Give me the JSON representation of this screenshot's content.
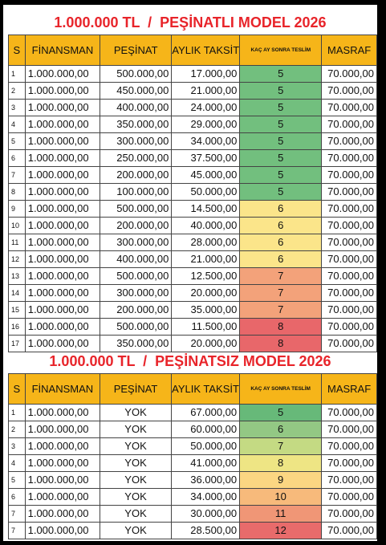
{
  "section1": {
    "title": "1.000.000 TL  /  PEŞİNATLI MODEL 2026",
    "headers": {
      "s": "S",
      "finansman": "FİNANSMAN",
      "pesinat": "PEŞİNAT",
      "aylik": "AYLIK TAKSİT",
      "kac": "KAÇ AY  SONRA TESLİM",
      "masraf": "MASRAF"
    },
    "rows": [
      {
        "s": "1",
        "fin": "1.000.000,00",
        "pes": "500.000,00",
        "tak": "17.000,00",
        "kac": "5",
        "mas": "70.000,00",
        "color": "#72bf7e"
      },
      {
        "s": "2",
        "fin": "1.000.000,00",
        "pes": "450.000,00",
        "tak": "21.000,00",
        "kac": "5",
        "mas": "70.000,00",
        "color": "#72bf7e"
      },
      {
        "s": "3",
        "fin": "1.000.000,00",
        "pes": "400.000,00",
        "tak": "24.000,00",
        "kac": "5",
        "mas": "70.000,00",
        "color": "#72bf7e"
      },
      {
        "s": "4",
        "fin": "1.000.000,00",
        "pes": "350.000,00",
        "tak": "29.000,00",
        "kac": "5",
        "mas": "70.000,00",
        "color": "#72bf7e"
      },
      {
        "s": "5",
        "fin": "1.000.000,00",
        "pes": "300.000,00",
        "tak": "34.000,00",
        "kac": "5",
        "mas": "70.000,00",
        "color": "#72bf7e"
      },
      {
        "s": "6",
        "fin": "1.000.000,00",
        "pes": "250.000,00",
        "tak": "37.500,00",
        "kac": "5",
        "mas": "70.000,00",
        "color": "#72bf7e"
      },
      {
        "s": "7",
        "fin": "1.000.000,00",
        "pes": "200.000,00",
        "tak": "45.000,00",
        "kac": "5",
        "mas": "70.000,00",
        "color": "#72bf7e"
      },
      {
        "s": "8",
        "fin": "1.000.000,00",
        "pes": "100.000,00",
        "tak": "50.000,00",
        "kac": "5",
        "mas": "70.000,00",
        "color": "#72bf7e"
      },
      {
        "s": "9",
        "fin": "1.000.000,00",
        "pes": "500.000,00",
        "tak": "14.500,00",
        "kac": "6",
        "mas": "70.000,00",
        "color": "#fbe58a"
      },
      {
        "s": "10",
        "fin": "1.000.000,00",
        "pes": "200.000,00",
        "tak": "40.000,00",
        "kac": "6",
        "mas": "70.000,00",
        "color": "#fbe58a"
      },
      {
        "s": "11",
        "fin": "1.000.000,00",
        "pes": "300.000,00",
        "tak": "28.000,00",
        "kac": "6",
        "mas": "70.000,00",
        "color": "#fbe58a"
      },
      {
        "s": "12",
        "fin": "1.000.000,00",
        "pes": "400.000,00",
        "tak": "21.000,00",
        "kac": "6",
        "mas": "70.000,00",
        "color": "#fbe58a"
      },
      {
        "s": "13",
        "fin": "1.000.000,00",
        "pes": "500.000,00",
        "tak": "12.500,00",
        "kac": "7",
        "mas": "70.000,00",
        "color": "#f3a27a"
      },
      {
        "s": "14",
        "fin": "1.000.000,00",
        "pes": "300.000,00",
        "tak": "20.000,00",
        "kac": "7",
        "mas": "70.000,00",
        "color": "#f3a27a"
      },
      {
        "s": "15",
        "fin": "1.000.000,00",
        "pes": "200.000,00",
        "tak": "35.000,00",
        "kac": "7",
        "mas": "70.000,00",
        "color": "#f3a27a"
      },
      {
        "s": "16",
        "fin": "1.000.000,00",
        "pes": "500.000,00",
        "tak": "11.500,00",
        "kac": "8",
        "mas": "70.000,00",
        "color": "#e8676a"
      },
      {
        "s": "17",
        "fin": "1.000.000,00",
        "pes": "350.000,00",
        "tak": "20.000,00",
        "kac": "8",
        "mas": "70.000,00",
        "color": "#e8676a"
      }
    ]
  },
  "section2": {
    "title": "1.000.000 TL  /  PEŞİNATSIZ MODEL 2026",
    "headers": {
      "s": "S",
      "finansman": "FİNANSMAN",
      "pesinat": "PEŞİNAT",
      "aylik": "AYLIK TAKSİT",
      "kac": "KAÇ AY  SONRA TESLİM",
      "masraf": "MASRAF"
    },
    "rows": [
      {
        "s": "1",
        "fin": "1.000.000,00",
        "pes": "YOK",
        "tak": "67.000,00",
        "kac": "5",
        "mas": "70.000,00",
        "color": "#67b979"
      },
      {
        "s": "2",
        "fin": "1.000.000,00",
        "pes": "YOK",
        "tak": "60.000,00",
        "kac": "6",
        "mas": "70.000,00",
        "color": "#93c884"
      },
      {
        "s": "3",
        "fin": "1.000.000,00",
        "pes": "YOK",
        "tak": "50.000,00",
        "kac": "7",
        "mas": "70.000,00",
        "color": "#c4da83"
      },
      {
        "s": "4",
        "fin": "1.000.000,00",
        "pes": "YOK",
        "tak": "41.000,00",
        "kac": "8",
        "mas": "70.000,00",
        "color": "#eee584"
      },
      {
        "s": "5",
        "fin": "1.000.000,00",
        "pes": "YOK",
        "tak": "36.000,00",
        "kac": "9",
        "mas": "70.000,00",
        "color": "#fbd682"
      },
      {
        "s": "6",
        "fin": "1.000.000,00",
        "pes": "YOK",
        "tak": "34.000,00",
        "kac": "10",
        "mas": "70.000,00",
        "color": "#f7ba7b"
      },
      {
        "s": "7",
        "fin": "1.000.000,00",
        "pes": "YOK",
        "tak": "30.000,00",
        "kac": "11",
        "mas": "70.000,00",
        "color": "#f09676"
      },
      {
        "s": "7",
        "fin": "1.000.000,00",
        "pes": "YOK",
        "tak": "28.500,00",
        "kac": "12",
        "mas": "70.000,00",
        "color": "#e86b6b"
      }
    ]
  }
}
